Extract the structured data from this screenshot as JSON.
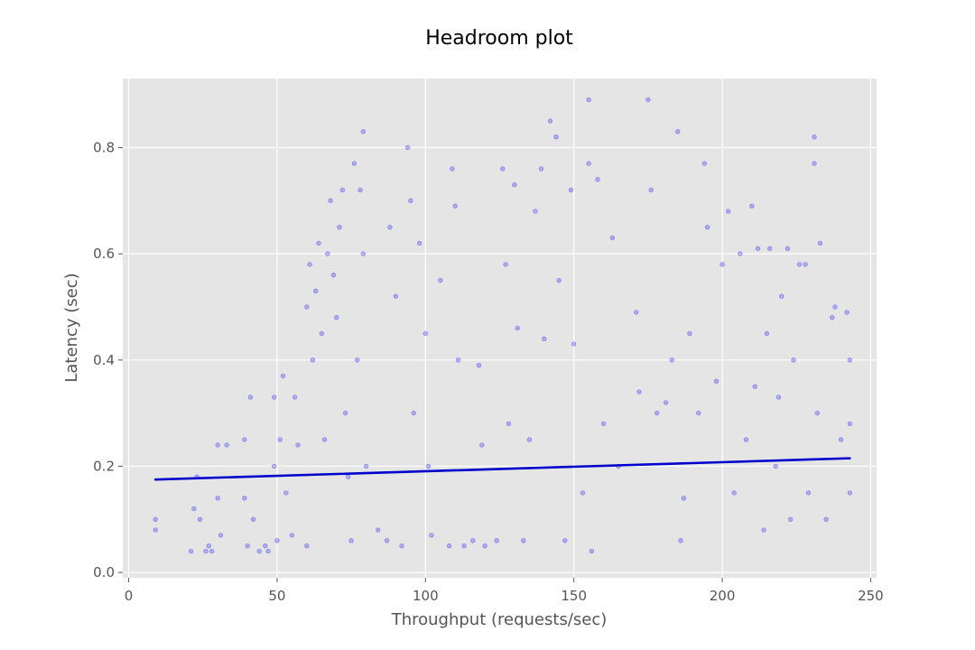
{
  "chart_data": {
    "type": "scatter",
    "title": "Headroom plot",
    "xlabel": "Throughput (requests/sec)",
    "ylabel": "Latency (sec)",
    "xlim": [
      -2,
      252
    ],
    "ylim": [
      -0.01,
      0.93
    ],
    "xticks": [
      0,
      50,
      100,
      150,
      200,
      250
    ],
    "yticks": [
      0.0,
      0.2,
      0.4,
      0.6,
      0.8
    ],
    "xtick_labels": [
      "0",
      "50",
      "100",
      "150",
      "200",
      "250"
    ],
    "ytick_labels": [
      "0.0",
      "0.2",
      "0.4",
      "0.6",
      "0.8"
    ],
    "grid": true,
    "background": "#e5e5e5",
    "point_color": "#0000ff",
    "line_color": "#0000cc",
    "point_alpha": 0.25,
    "series": [
      {
        "kind": "scatter",
        "points": [
          [
            9,
            0.08
          ],
          [
            9,
            0.1
          ],
          [
            21,
            0.04
          ],
          [
            22,
            0.12
          ],
          [
            23,
            0.18
          ],
          [
            24,
            0.1
          ],
          [
            26,
            0.04
          ],
          [
            27,
            0.05
          ],
          [
            28,
            0.04
          ],
          [
            30,
            0.24
          ],
          [
            30,
            0.14
          ],
          [
            31,
            0.07
          ],
          [
            33,
            0.24
          ],
          [
            39,
            0.25
          ],
          [
            39,
            0.14
          ],
          [
            40,
            0.05
          ],
          [
            41,
            0.33
          ],
          [
            42,
            0.1
          ],
          [
            44,
            0.04
          ],
          [
            46,
            0.05
          ],
          [
            47,
            0.04
          ],
          [
            49,
            0.33
          ],
          [
            49,
            0.2
          ],
          [
            50,
            0.06
          ],
          [
            51,
            0.25
          ],
          [
            52,
            0.37
          ],
          [
            53,
            0.15
          ],
          [
            55,
            0.07
          ],
          [
            56,
            0.33
          ],
          [
            57,
            0.24
          ],
          [
            60,
            0.05
          ],
          [
            60,
            0.5
          ],
          [
            61,
            0.58
          ],
          [
            62,
            0.4
          ],
          [
            63,
            0.53
          ],
          [
            64,
            0.62
          ],
          [
            65,
            0.45
          ],
          [
            66,
            0.25
          ],
          [
            67,
            0.6
          ],
          [
            68,
            0.7
          ],
          [
            69,
            0.56
          ],
          [
            70,
            0.48
          ],
          [
            71,
            0.65
          ],
          [
            72,
            0.72
          ],
          [
            73,
            0.3
          ],
          [
            74,
            0.18
          ],
          [
            75,
            0.06
          ],
          [
            76,
            0.77
          ],
          [
            77,
            0.4
          ],
          [
            78,
            0.72
          ],
          [
            79,
            0.83
          ],
          [
            79,
            0.6
          ],
          [
            80,
            0.2
          ],
          [
            84,
            0.08
          ],
          [
            87,
            0.06
          ],
          [
            88,
            0.65
          ],
          [
            90,
            0.52
          ],
          [
            92,
            0.05
          ],
          [
            94,
            0.8
          ],
          [
            95,
            0.7
          ],
          [
            96,
            0.3
          ],
          [
            98,
            0.62
          ],
          [
            100,
            0.45
          ],
          [
            101,
            0.2
          ],
          [
            102,
            0.07
          ],
          [
            105,
            0.55
          ],
          [
            108,
            0.05
          ],
          [
            109,
            0.76
          ],
          [
            110,
            0.69
          ],
          [
            111,
            0.4
          ],
          [
            113,
            0.05
          ],
          [
            116,
            0.06
          ],
          [
            118,
            0.39
          ],
          [
            119,
            0.24
          ],
          [
            120,
            0.05
          ],
          [
            124,
            0.06
          ],
          [
            126,
            0.76
          ],
          [
            127,
            0.58
          ],
          [
            128,
            0.28
          ],
          [
            130,
            0.73
          ],
          [
            131,
            0.46
          ],
          [
            133,
            0.06
          ],
          [
            135,
            0.25
          ],
          [
            137,
            0.68
          ],
          [
            139,
            0.76
          ],
          [
            140,
            0.44
          ],
          [
            142,
            0.85
          ],
          [
            144,
            0.82
          ],
          [
            145,
            0.55
          ],
          [
            147,
            0.06
          ],
          [
            149,
            0.72
          ],
          [
            150,
            0.43
          ],
          [
            153,
            0.15
          ],
          [
            155,
            0.89
          ],
          [
            155,
            0.77
          ],
          [
            156,
            0.04
          ],
          [
            158,
            0.74
          ],
          [
            160,
            0.28
          ],
          [
            163,
            0.63
          ],
          [
            165,
            0.2
          ],
          [
            171,
            0.49
          ],
          [
            172,
            0.34
          ],
          [
            175,
            0.89
          ],
          [
            176,
            0.72
          ],
          [
            178,
            0.3
          ],
          [
            181,
            0.32
          ],
          [
            183,
            0.4
          ],
          [
            185,
            0.83
          ],
          [
            186,
            0.06
          ],
          [
            187,
            0.14
          ],
          [
            189,
            0.45
          ],
          [
            192,
            0.3
          ],
          [
            194,
            0.77
          ],
          [
            195,
            0.65
          ],
          [
            198,
            0.36
          ],
          [
            200,
            0.58
          ],
          [
            202,
            0.68
          ],
          [
            204,
            0.15
          ],
          [
            206,
            0.6
          ],
          [
            208,
            0.25
          ],
          [
            210,
            0.69
          ],
          [
            211,
            0.35
          ],
          [
            212,
            0.61
          ],
          [
            214,
            0.08
          ],
          [
            215,
            0.45
          ],
          [
            216,
            0.61
          ],
          [
            218,
            0.2
          ],
          [
            219,
            0.33
          ],
          [
            220,
            0.52
          ],
          [
            222,
            0.61
          ],
          [
            223,
            0.1
          ],
          [
            224,
            0.4
          ],
          [
            226,
            0.58
          ],
          [
            228,
            0.58
          ],
          [
            229,
            0.15
          ],
          [
            231,
            0.82
          ],
          [
            231,
            0.77
          ],
          [
            232,
            0.3
          ],
          [
            233,
            0.62
          ],
          [
            235,
            0.1
          ],
          [
            237,
            0.48
          ],
          [
            238,
            0.5
          ],
          [
            240,
            0.25
          ],
          [
            242,
            0.49
          ],
          [
            243,
            0.28
          ],
          [
            243,
            0.15
          ],
          [
            243,
            0.4
          ]
        ]
      },
      {
        "kind": "line",
        "x": [
          9,
          243
        ],
        "y": [
          0.175,
          0.215
        ]
      }
    ]
  }
}
